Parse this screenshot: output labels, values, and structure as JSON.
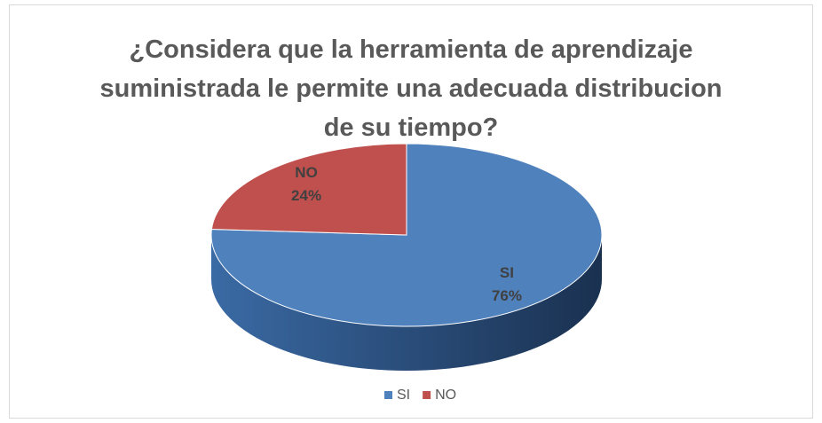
{
  "chart_data": {
    "type": "pie",
    "title": "¿Considera que la herramienta de aprendizaje suministrada le permite una adecuada distribucion de su tiempo?",
    "categories": [
      "SI",
      "NO"
    ],
    "values": [
      76,
      24
    ],
    "value_labels": [
      "76%",
      "24%"
    ],
    "colors": [
      "#4f81bd",
      "#c0504d"
    ],
    "legend": "bottom"
  }
}
